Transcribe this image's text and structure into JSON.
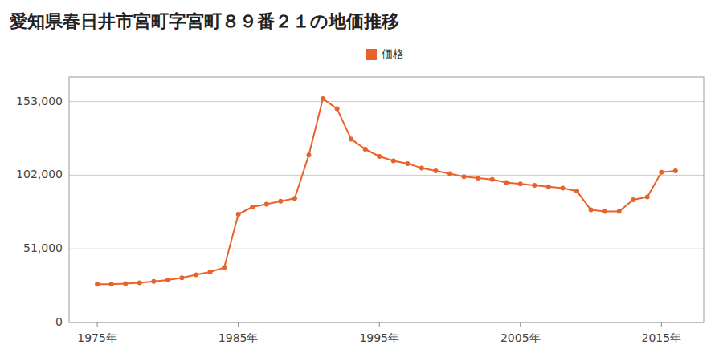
{
  "chart_data": {
    "type": "line",
    "title": "愛知県春日井市宮町字宮町８９番２１の地価推移",
    "x": [
      1975,
      1976,
      1977,
      1978,
      1979,
      1980,
      1981,
      1982,
      1983,
      1984,
      1985,
      1986,
      1987,
      1988,
      1989,
      1990,
      1991,
      1992,
      1993,
      1994,
      1995,
      1996,
      1997,
      1998,
      1999,
      2000,
      2001,
      2002,
      2003,
      2004,
      2005,
      2006,
      2007,
      2008,
      2009,
      2010,
      2011,
      2012,
      2013,
      2014,
      2015,
      2016
    ],
    "series": [
      {
        "name": "価格",
        "color": "#e8622a",
        "marker": "circle",
        "values": [
          26500,
          26500,
          27000,
          27500,
          28500,
          29500,
          31000,
          33000,
          35000,
          38000,
          75000,
          80000,
          82000,
          84000,
          86000,
          116000,
          155000,
          148000,
          127000,
          120000,
          115000,
          112000,
          110000,
          107000,
          105000,
          103000,
          101000,
          100000,
          99000,
          97000,
          96000,
          95000,
          94000,
          93000,
          91000,
          78000,
          77000,
          77000,
          85000,
          87000,
          104000,
          105000
        ]
      }
    ],
    "xlim": [
      1973,
      2018
    ],
    "xticks": [
      {
        "value": 1975,
        "label": "1975年"
      },
      {
        "value": 1985,
        "label": "1985年"
      },
      {
        "value": 1995,
        "label": "1995年"
      },
      {
        "value": 2005,
        "label": "2005年"
      },
      {
        "value": 2015,
        "label": "2015年"
      }
    ],
    "ylim": [
      0,
      170000
    ],
    "yticks": [
      0,
      {
        "value": 51000,
        "label": "51,000"
      },
      {
        "value": 102000,
        "label": "102,000"
      },
      {
        "value": 153000,
        "label": "153,000"
      }
    ],
    "grid": "y",
    "legend": "top"
  }
}
